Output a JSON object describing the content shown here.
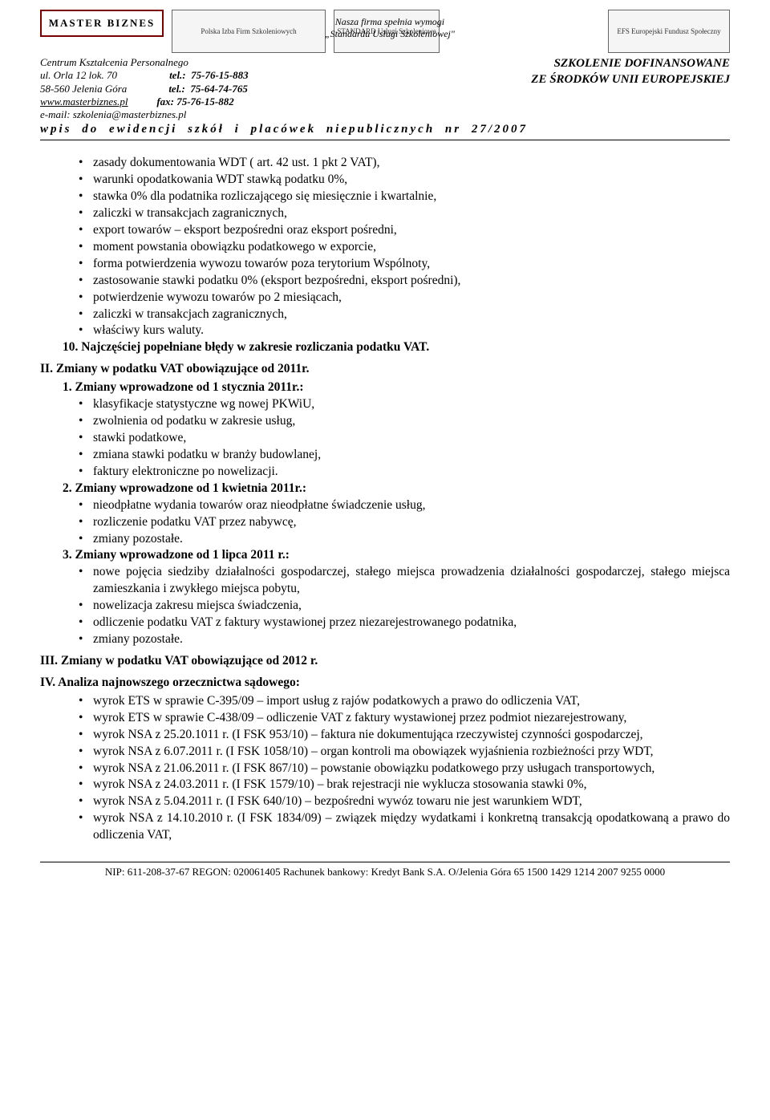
{
  "header": {
    "logos": {
      "master": "MASTER BIZNES",
      "pifs": "Polska Izba Firm Szkoleniowych",
      "standard": "STANDARD Usługi Szkoleniowe",
      "efs": "EFS Europejski Fundusz Społeczny"
    },
    "left": {
      "l1": "Centrum Kształcenia Personalnego",
      "l2a": "ul. Orla 12 lok. 70",
      "l2b": "tel.:  75-76-15-883",
      "l3a": "58-560 Jelenia Góra",
      "l3b": "tel.:  75-64-74-765",
      "l4a": "www.masterbiznes.pl",
      "l4b": "fax: 75-76-15-882",
      "l5": "e-mail: szkolenia@masterbiznes.pl"
    },
    "center": {
      "l1": "Nasza firma spełnia wymogi",
      "l2": "„Standardu Usługi Szkoleniowej\""
    },
    "right": {
      "l1": "SZKOLENIE DOFINANSOWANE",
      "l2": "ZE ŚRODKÓW UNII EUROPEJSKIEJ"
    },
    "wpis": "wpis do ewidencji szkół i placówek niepublicznych nr 27/2007"
  },
  "sec1": {
    "b1": "zasady dokumentowania WDT ( art. 42 ust. 1 pkt 2 VAT),",
    "b2": "warunki opodatkowania WDT stawką podatku 0%,",
    "b3": "stawka 0% dla podatnika rozliczającego się miesięcznie i kwartalnie,",
    "b4": "zaliczki w transakcjach zagranicznych,",
    "b5": "export towarów – eksport bezpośredni oraz eksport pośredni,",
    "b6": "moment powstania obowiązku podatkowego w exporcie,",
    "b7": "forma potwierdzenia wywozu towarów poza terytorium Wspólnoty,",
    "b8": "zastosowanie stawki podatku 0% (eksport bezpośredni, eksport pośredni),",
    "b9": "potwierdzenie wywozu towarów po 2 miesiącach,",
    "b10": "zaliczki w transakcjach zagranicznych,",
    "b11": "właściwy kurs waluty.",
    "n10": "10.  Najczęściej popełniane błędy w zakresie rozliczania podatku VAT."
  },
  "secII": {
    "title": "II.  Zmiany w podatku VAT obowiązujące od 2011r.",
    "n1": "1.   Zmiany wprowadzone od 1 stycznia 2011r.:",
    "b1": "klasyfikacje statystyczne wg nowej PKWiU,",
    "b2": "zwolnienia od podatku w zakresie usług,",
    "b3": "stawki podatkowe,",
    "b4": "zmiana stawki podatku w branży budowlanej,",
    "b5": "faktury elektroniczne po nowelizacji.",
    "n2": "2.   Zmiany wprowadzone od 1 kwietnia 2011r.:",
    "b6": "nieodpłatne wydania towarów oraz nieodpłatne świadczenie usług,",
    "b7": "rozliczenie podatku VAT przez nabywcę,",
    "b8": "zmiany pozostałe.",
    "n3": "3.   Zmiany wprowadzone od 1 lipca 2011 r.:",
    "b9": "nowe pojęcia siedziby działalności gospodarczej, stałego miejsca prowadzenia działalności gospodarczej, stałego miejsca zamieszkania i zwykłego miejsca pobytu,",
    "b10": "nowelizacja zakresu miejsca świadczenia,",
    "b11": "odliczenie podatku VAT z faktury wystawionej przez niezarejestrowanego podatnika,",
    "b12": "zmiany pozostałe."
  },
  "secIII": {
    "title": "III. Zmiany w podatku VAT obowiązujące od 2012 r."
  },
  "secIV": {
    "title": "IV. Analiza najnowszego orzecznictwa sądowego:",
    "b1": "wyrok ETS w sprawie C-395/09 – import usług z rajów podatkowych a prawo do odliczenia VAT,",
    "b2": "wyrok ETS w sprawie C-438/09 – odliczenie VAT z faktury wystawionej przez podmiot niezarejestrowany,",
    "b3": "wyrok NSA z 25.20.1011 r. (I FSK 953/10) – faktura nie dokumentująca rzeczywistej czynności gospodarczej,",
    "b4": "wyrok NSA z 6.07.2011 r. (I FSK 1058/10) – organ kontroli ma obowiązek wyjaśnienia rozbieżności przy WDT,",
    "b5": "wyrok NSA z 21.06.2011 r. (I FSK 867/10) – powstanie obowiązku podatkowego przy usługach transportowych,",
    "b6": "wyrok NSA z 24.03.2011 r. (I FSK 1579/10) – brak rejestracji nie wyklucza stosowania stawki 0%,",
    "b7": "wyrok NSA z 5.04.2011 r. (I FSK 640/10) – bezpośredni wywóz towaru nie jest warunkiem WDT,",
    "b8": "wyrok NSA z 14.10.2010 r. (I FSK 1834/09) – związek między wydatkami i konkretną transakcją opodatkowaną a prawo do odliczenia VAT,"
  },
  "footer": "NIP: 611-208-37-67 REGON: 020061405 Rachunek bankowy: Kredyt Bank S.A. O/Jelenia Góra 65 1500 1429 1214 2007 9255 0000"
}
